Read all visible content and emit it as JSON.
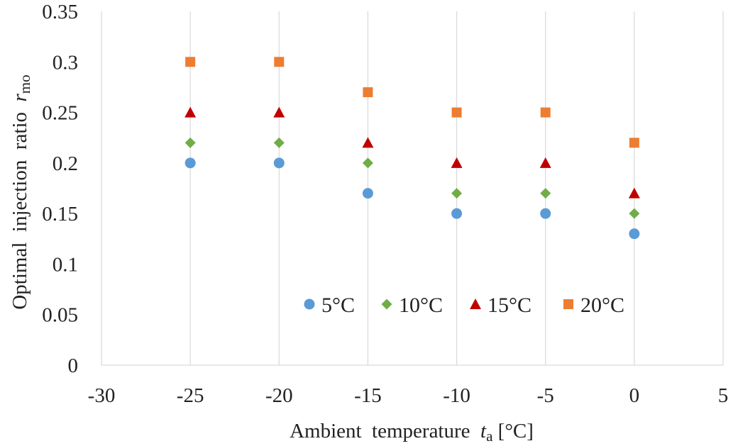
{
  "chart_data": {
    "type": "scatter",
    "title": "",
    "xlabel": {
      "prefix": "Ambient  temperature  ",
      "var": "t",
      "sub": "a",
      "suffix": " [°C]"
    },
    "ylabel": {
      "prefix": "Optimal  injection  ratio  ",
      "var": "r",
      "sub": "mo"
    },
    "xlim": [
      -30,
      5
    ],
    "ylim": [
      0,
      0.35
    ],
    "xticks": [
      "-30",
      "-25",
      "-20",
      "-15",
      "-10",
      "-5",
      "0",
      "5"
    ],
    "yticks": [
      "0",
      "0.05",
      "0.1",
      "0.15",
      "0.2",
      "0.25",
      "0.3",
      "0.35"
    ],
    "grid": "vertical",
    "legend_position": "inside-bottom-right",
    "x": [
      -25,
      -20,
      -15,
      -10,
      -5,
      0
    ],
    "series": [
      {
        "name": "5°C",
        "marker": "circle",
        "color": "#5b9bd5",
        "values": [
          0.2,
          0.2,
          0.17,
          0.15,
          0.15,
          0.13
        ]
      },
      {
        "name": "10°C",
        "marker": "diamond",
        "color": "#70ad47",
        "values": [
          0.22,
          0.22,
          0.2,
          0.17,
          0.17,
          0.15
        ]
      },
      {
        "name": "15°C",
        "marker": "triangle",
        "color": "#c00000",
        "values": [
          0.25,
          0.25,
          0.22,
          0.2,
          0.2,
          0.17
        ]
      },
      {
        "name": "20°C",
        "marker": "square",
        "color": "#ed7d31",
        "values": [
          0.3,
          0.3,
          0.27,
          0.25,
          0.25,
          0.22
        ]
      }
    ]
  }
}
